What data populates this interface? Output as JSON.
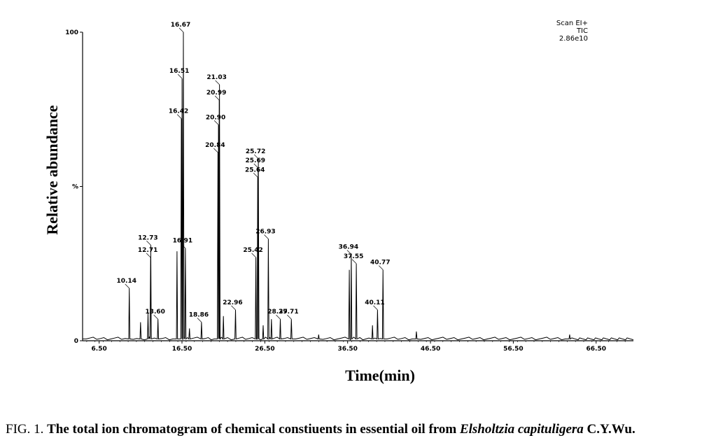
{
  "chart_data": {
    "type": "line",
    "title": "",
    "xlabel": "Time(min)",
    "ylabel": "Relative abundance",
    "xlim": [
      4.5,
      71.0
    ],
    "ylim": [
      0,
      100
    ],
    "x_ticks": [
      {
        "value": 6.5,
        "label": "6.50"
      },
      {
        "value": 16.5,
        "label": "16.50"
      },
      {
        "value": 26.5,
        "label": "26.50"
      },
      {
        "value": 36.5,
        "label": "36.50"
      },
      {
        "value": 46.5,
        "label": "46.50"
      },
      {
        "value": 56.5,
        "label": "56.50"
      },
      {
        "value": 66.5,
        "label": "66.50"
      }
    ],
    "y_ticks": [
      {
        "value": 0,
        "label": "0"
      },
      {
        "value": 50,
        "label": "%"
      },
      {
        "value": 100,
        "label": "100"
      }
    ],
    "scan_info": [
      "Scan EI+",
      "TIC",
      "2.86e10"
    ],
    "grid": false,
    "peaks": [
      {
        "x": 10.14,
        "y": 17,
        "label": "10.14",
        "labeled": true
      },
      {
        "x": 11.5,
        "y": 6,
        "labeled": false
      },
      {
        "x": 12.4,
        "y": 9,
        "labeled": false
      },
      {
        "x": 12.71,
        "y": 27,
        "label": "12.71",
        "labeled": true
      },
      {
        "x": 12.73,
        "y": 31,
        "label": "12.73",
        "labeled": true
      },
      {
        "x": 13.6,
        "y": 7,
        "label": "13.60",
        "labeled": true
      },
      {
        "x": 15.9,
        "y": 29,
        "labeled": false
      },
      {
        "x": 16.42,
        "y": 72,
        "label": "16.42",
        "labeled": true
      },
      {
        "x": 16.51,
        "y": 85,
        "label": "16.51",
        "labeled": true
      },
      {
        "x": 16.67,
        "y": 100,
        "label": "16.67",
        "labeled": true
      },
      {
        "x": 16.91,
        "y": 30,
        "label": "16.91",
        "labeled": true
      },
      {
        "x": 17.4,
        "y": 4,
        "labeled": false
      },
      {
        "x": 18.86,
        "y": 6,
        "label": "18.86",
        "labeled": true
      },
      {
        "x": 20.84,
        "y": 61,
        "label": "20.84",
        "labeled": true
      },
      {
        "x": 20.9,
        "y": 70,
        "label": "20.90",
        "labeled": true
      },
      {
        "x": 20.99,
        "y": 78,
        "label": "20.99",
        "labeled": true
      },
      {
        "x": 21.03,
        "y": 83,
        "label": "21.03",
        "labeled": true
      },
      {
        "x": 21.5,
        "y": 8,
        "labeled": false
      },
      {
        "x": 22.96,
        "y": 10,
        "label": "22.96",
        "labeled": true
      },
      {
        "x": 25.42,
        "y": 27,
        "label": "25.42",
        "labeled": true
      },
      {
        "x": 25.64,
        "y": 53,
        "label": "25.64",
        "labeled": true
      },
      {
        "x": 25.69,
        "y": 56,
        "label": "25.69",
        "labeled": true
      },
      {
        "x": 25.72,
        "y": 59,
        "label": "25.72",
        "labeled": true
      },
      {
        "x": 26.3,
        "y": 5,
        "labeled": false
      },
      {
        "x": 26.93,
        "y": 33,
        "label": "26.93",
        "labeled": true
      },
      {
        "x": 27.3,
        "y": 7,
        "labeled": false
      },
      {
        "x": 28.37,
        "y": 7,
        "label": "28.37",
        "labeled": true
      },
      {
        "x": 29.71,
        "y": 7,
        "label": "29.71",
        "labeled": true
      },
      {
        "x": 33.0,
        "y": 2,
        "labeled": false
      },
      {
        "x": 36.7,
        "y": 23,
        "labeled": false
      },
      {
        "x": 36.94,
        "y": 28,
        "label": "36.94",
        "labeled": true
      },
      {
        "x": 37.55,
        "y": 25,
        "label": "37.55",
        "labeled": true
      },
      {
        "x": 39.5,
        "y": 5,
        "labeled": false
      },
      {
        "x": 40.11,
        "y": 10,
        "label": "40.11",
        "labeled": true
      },
      {
        "x": 40.77,
        "y": 23,
        "label": "40.77",
        "labeled": true
      },
      {
        "x": 44.8,
        "y": 3,
        "labeled": false
      },
      {
        "x": 63.3,
        "y": 2,
        "labeled": false
      }
    ]
  },
  "caption": {
    "prefix": "FIG. 1. ",
    "bold": "The total ion chromatogram of chemical constiuents in essential oil from ",
    "italic": "Elsholtzia capituligera",
    "suffix": " C.Y.Wu."
  }
}
